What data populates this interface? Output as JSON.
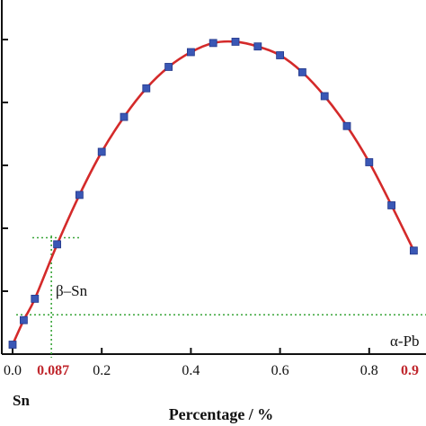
{
  "chart_data": {
    "type": "line",
    "xlabel": "Percentage / %",
    "x_ticks": [
      "0.0",
      "0.2",
      "0.4",
      "0.6",
      "0.8"
    ],
    "xlim": [
      0,
      0.9
    ],
    "ylim": [
      0,
      1
    ],
    "series": [
      {
        "color": "#d42a2a",
        "marker_color": "#3a57b5",
        "x": [
          0.0,
          0.025,
          0.05,
          0.1,
          0.15,
          0.2,
          0.25,
          0.3,
          0.35,
          0.4,
          0.45,
          0.5,
          0.55,
          0.6,
          0.65,
          0.7,
          0.75,
          0.8,
          0.85,
          0.9
        ],
        "y": [
          0.03,
          0.108,
          0.176,
          0.349,
          0.506,
          0.643,
          0.754,
          0.845,
          0.913,
          0.96,
          0.989,
          0.993,
          0.978,
          0.95,
          0.896,
          0.82,
          0.725,
          0.61,
          0.473,
          0.329
        ]
      }
    ],
    "annotations": {
      "left_value": "0.087",
      "right_value": "0.9",
      "left_phase": "β–Sn",
      "right_phase": "α-Pb",
      "left_element": "Sn",
      "left_value_x": 0.087,
      "right_value_x": 0.9,
      "upper_level_y": 0.37,
      "lower_level_y": 0.125,
      "highlight_color": "#c0272d",
      "guide_color": "#3aa63a"
    }
  }
}
